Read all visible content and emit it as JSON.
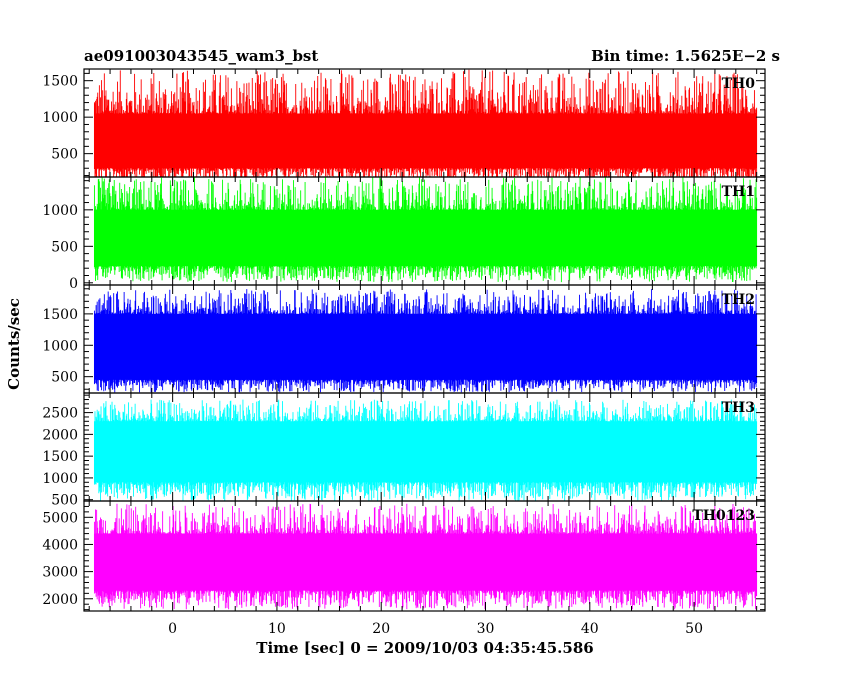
{
  "chart_data": {
    "type": "line",
    "title": "ae091003043545_wam3_bst",
    "subtitle": "Bin time: 1.5625E−2 s",
    "ylabel": "Counts/sec",
    "xlabel": "Time [sec] 0 = 2009/10/03 04:35:45.586",
    "xlim": [
      -8.5,
      56.8
    ],
    "data_xrange": [
      -7.5,
      56.0
    ],
    "xticks": [
      0,
      10,
      20,
      30,
      40,
      50
    ],
    "xtick_labels": [
      "0",
      "10",
      "20",
      "30",
      "40",
      "50"
    ],
    "grid": false,
    "panels": [
      {
        "name": "TH0",
        "color": "#ff0000",
        "ylim": [
          180,
          1660
        ],
        "yticks": [
          500,
          1000,
          1500
        ],
        "ytick_labels": [
          "500",
          "1000",
          "1500"
        ],
        "envelope": {
          "low": 100,
          "typical_low": 300,
          "typical_high": 1050,
          "peak": 1650
        }
      },
      {
        "name": "TH1",
        "color": "#00ff00",
        "ylim": [
          -30,
          1450
        ],
        "yticks": [
          0,
          500,
          1000
        ],
        "ytick_labels": [
          "0",
          "500",
          "1000"
        ],
        "envelope": {
          "low": 10,
          "typical_low": 230,
          "typical_high": 1000,
          "peak": 1450
        }
      },
      {
        "name": "TH2",
        "color": "#0000ff",
        "ylim": [
          240,
          1960
        ],
        "yticks": [
          500,
          1000,
          1500
        ],
        "ytick_labels": [
          "500",
          "1000",
          "1500"
        ],
        "envelope": {
          "low": 250,
          "typical_low": 450,
          "typical_high": 1500,
          "peak": 1900
        }
      },
      {
        "name": "TH3",
        "color": "#00ffff",
        "ylim": [
          470,
          2950
        ],
        "yticks": [
          500,
          1000,
          1500,
          2000,
          2500
        ],
        "ytick_labels": [
          "500",
          "1000",
          "1500",
          "2000",
          "2500"
        ],
        "envelope": {
          "low": 470,
          "typical_low": 900,
          "typical_high": 2300,
          "peak": 2800
        }
      },
      {
        "name": "TH0123",
        "color": "#ff00ff",
        "ylim": [
          1550,
          5600
        ],
        "yticks": [
          2000,
          3000,
          4000,
          5000
        ],
        "ytick_labels": [
          "2000",
          "3000",
          "4000",
          "5000"
        ],
        "envelope": {
          "low": 1600,
          "typical_low": 2300,
          "typical_high": 4400,
          "peak": 5500
        }
      }
    ]
  }
}
